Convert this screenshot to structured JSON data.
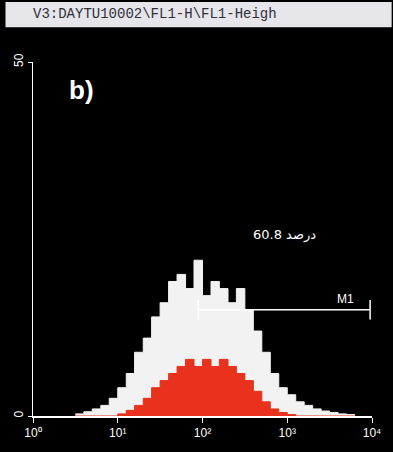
{
  "chart_data": {
    "type": "histogram",
    "title": "V3:DAYTU10002\\FL1-H\\FL1-Heigh",
    "panel_label": "b)",
    "log": "x",
    "grid": false,
    "bins": [
      3.16,
      3.98,
      5.01,
      6.31,
      7.94,
      10,
      12.6,
      15.8,
      20.0,
      25.1,
      31.6,
      39.8,
      50.1,
      63.1,
      79.4,
      100,
      126,
      158,
      200,
      251,
      316,
      398,
      501,
      631,
      794,
      1000,
      1259,
      1585,
      1995,
      2512,
      3162,
      3981,
      5012,
      6310
    ],
    "series": [
      {
        "color": "#f2f2f2",
        "values": [
          0.3,
          0.6,
          1,
          1.5,
          2.5,
          4,
          6,
          9,
          11,
          14,
          16,
          19,
          20,
          18,
          22,
          17,
          19,
          18,
          16,
          18,
          15,
          12,
          9,
          6,
          4,
          3,
          2,
          1.5,
          1,
          0.7,
          0.5,
          0.3,
          0.2
        ]
      },
      {
        "color": "#e8321e",
        "values": [
          0,
          0,
          0,
          0,
          0,
          0.3,
          0.8,
          1.5,
          2.5,
          4,
          5,
          6,
          7,
          8,
          7,
          8,
          7,
          8,
          7,
          6,
          5,
          3.5,
          2,
          1,
          0.5,
          0.2,
          0,
          0,
          0,
          0,
          0,
          0,
          0
        ]
      }
    ],
    "xlim": [
      1,
      10000
    ],
    "xticks": [
      {
        "value": 1,
        "label": "10⁰"
      },
      {
        "value": 10,
        "label": "10¹"
      },
      {
        "value": 100,
        "label": "10²"
      },
      {
        "value": 1000,
        "label": "10³"
      },
      {
        "value": 10000,
        "label": "10⁴"
      }
    ],
    "ylim": [
      0,
      50
    ],
    "yticks": [
      0,
      50
    ],
    "gate": {
      "label": "M1",
      "x": [
        89,
        9500
      ],
      "y": 15
    },
    "annotations": [
      {
        "text": "درصد 60.8",
        "x": 940,
        "y": 25.6
      }
    ]
  }
}
